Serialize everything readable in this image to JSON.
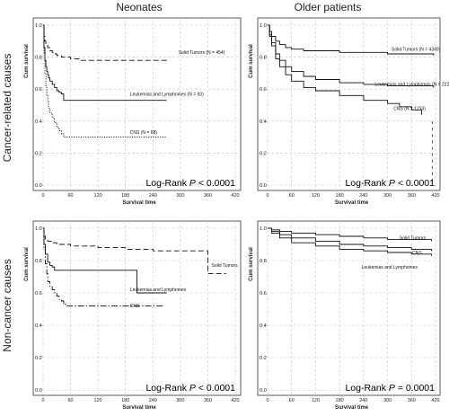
{
  "column_titles": [
    "Neonates",
    "Older patients"
  ],
  "row_titles": [
    "Cancer-related causes",
    "Non-cancer causes"
  ],
  "chart_data": [
    {
      "type": "line",
      "panel": "neonates-cancer",
      "xlabel": "Survival time",
      "ylabel": "Cum survival",
      "xlim": [
        0,
        420
      ],
      "ylim": [
        0,
        1.0
      ],
      "xticks": [
        0,
        60,
        120,
        180,
        240,
        300,
        360,
        420
      ],
      "yticks": [
        0.0,
        0.2,
        0.4,
        0.6,
        0.8,
        1.0
      ],
      "grid": true,
      "stat": {
        "prefix": "Log-Rank ",
        "p_symbol": "P",
        "suffix": " < 0.0001"
      },
      "series": [
        {
          "name": "Solid Tumors (N = 454)",
          "label": "Solid Tumors (N = 454)",
          "style": "dashed",
          "label_pos": [
            296,
            0.82
          ],
          "x": [
            0,
            2,
            4,
            6,
            10,
            15,
            20,
            25,
            30,
            40,
            60,
            80,
            275
          ],
          "y": [
            1.0,
            0.93,
            0.9,
            0.88,
            0.86,
            0.84,
            0.83,
            0.82,
            0.81,
            0.8,
            0.79,
            0.78,
            0.78
          ]
        },
        {
          "name": "Leukemias and Lymphomes (N = 93)",
          "label": "Leukemias and Lymphomes (N = 93)",
          "style": "solid",
          "label_pos": [
            190,
            0.56
          ],
          "x": [
            0,
            2,
            4,
            6,
            8,
            10,
            12,
            15,
            20,
            25,
            30,
            35,
            40,
            45,
            270
          ],
          "y": [
            1.0,
            0.86,
            0.78,
            0.74,
            0.71,
            0.69,
            0.67,
            0.65,
            0.63,
            0.61,
            0.59,
            0.58,
            0.57,
            0.53,
            0.53
          ]
        },
        {
          "name": "CNS (N = 68)",
          "label": "CNS (N = 68)",
          "style": "dotted",
          "label_pos": [
            190,
            0.32
          ],
          "x": [
            0,
            2,
            4,
            6,
            8,
            10,
            12,
            15,
            20,
            25,
            30,
            35,
            40,
            45,
            270
          ],
          "y": [
            1.0,
            0.82,
            0.7,
            0.62,
            0.56,
            0.52,
            0.48,
            0.45,
            0.42,
            0.39,
            0.36,
            0.34,
            0.32,
            0.3,
            0.3
          ]
        }
      ]
    },
    {
      "type": "line",
      "panel": "older-cancer",
      "xlabel": "Survival time",
      "ylabel": "Cum survival",
      "xlim": [
        0,
        420
      ],
      "ylim": [
        0,
        1.0
      ],
      "xticks": [
        0,
        60,
        120,
        180,
        240,
        300,
        360,
        420
      ],
      "yticks": [
        0.0,
        0.2,
        0.4,
        0.6,
        0.8,
        1.0
      ],
      "grid": true,
      "stat": {
        "prefix": "Log-Rank ",
        "p_symbol": "P",
        "suffix": " < 0.0001"
      },
      "series": [
        {
          "name": "Solid Tumors (N = 4349)",
          "label": "Solid Tumors (N = 4349)",
          "style": "solid",
          "label_pos": [
            310,
            0.84
          ],
          "x": [
            0,
            5,
            10,
            20,
            30,
            45,
            60,
            90,
            120,
            180,
            240,
            300,
            360,
            415
          ],
          "y": [
            1.0,
            0.96,
            0.93,
            0.9,
            0.88,
            0.86,
            0.85,
            0.84,
            0.84,
            0.83,
            0.83,
            0.82,
            0.82,
            0.81
          ]
        },
        {
          "name": "Leukemias and Lymphomas (N = 2222)",
          "label": "Leukemias and Lymphomas (N = 2222)",
          "style": "solid",
          "label_pos": [
            268,
            0.62
          ],
          "x": [
            0,
            5,
            10,
            20,
            30,
            45,
            60,
            90,
            120,
            180,
            240,
            300,
            360,
            415
          ],
          "y": [
            1.0,
            0.94,
            0.89,
            0.82,
            0.78,
            0.74,
            0.71,
            0.68,
            0.66,
            0.64,
            0.63,
            0.62,
            0.62,
            0.61
          ]
        },
        {
          "name": "CNS (N = 1233)",
          "label": "CNS (N = 1233)",
          "style": "solid",
          "label_pos": [
            315,
            0.47
          ],
          "x": [
            0,
            5,
            10,
            20,
            30,
            45,
            60,
            90,
            120,
            180,
            240,
            300,
            330,
            360,
            385
          ],
          "y": [
            1.0,
            0.93,
            0.87,
            0.79,
            0.74,
            0.69,
            0.65,
            0.61,
            0.59,
            0.56,
            0.53,
            0.51,
            0.49,
            0.47,
            0.44
          ]
        }
      ],
      "extra_marks": {
        "x": 412,
        "y": [
          0.03,
          0.07,
          0.11,
          0.15,
          0.19,
          0.23,
          0.27,
          0.31,
          0.35,
          0.39
        ]
      }
    },
    {
      "type": "line",
      "panel": "neonates-noncancer",
      "xlabel": "Survival time",
      "ylabel": "Cum survival",
      "xlim": [
        0,
        420
      ],
      "ylim": [
        0,
        1.0
      ],
      "xticks": [
        0,
        60,
        120,
        180,
        240,
        300,
        360,
        420
      ],
      "yticks": [
        0.0,
        0.2,
        0.4,
        0.6,
        0.8,
        1.0
      ],
      "grid": true,
      "stat": {
        "prefix": "Log-Rank ",
        "p_symbol": "P",
        "suffix": " < 0.0001"
      },
      "series": [
        {
          "name": "Solid Tumors",
          "label": "Solid Tumors",
          "style": "dashed",
          "label_pos": [
            368,
            0.76
          ],
          "x": [
            0,
            2,
            5,
            10,
            20,
            30,
            60,
            120,
            180,
            240,
            300,
            355,
            360,
            400
          ],
          "y": [
            1.0,
            0.95,
            0.93,
            0.92,
            0.91,
            0.9,
            0.89,
            0.88,
            0.87,
            0.86,
            0.86,
            0.86,
            0.72,
            0.72
          ]
        },
        {
          "name": "Leukemias and Lymphomes",
          "label": "Leukemias and Lymphomes",
          "style": "solid",
          "label_pos": [
            190,
            0.61
          ],
          "x": [
            0,
            2,
            5,
            10,
            15,
            20,
            25,
            200,
            205,
            270
          ],
          "y": [
            1.0,
            0.9,
            0.84,
            0.79,
            0.77,
            0.76,
            0.74,
            0.74,
            0.6,
            0.6
          ]
        },
        {
          "name": "CNS",
          "label": "CNS",
          "style": "dashdot",
          "label_pos": [
            190,
            0.51
          ],
          "x": [
            0,
            2,
            5,
            8,
            10,
            15,
            20,
            25,
            30,
            35,
            40,
            45,
            50,
            265
          ],
          "y": [
            1.0,
            0.87,
            0.78,
            0.72,
            0.67,
            0.64,
            0.62,
            0.6,
            0.58,
            0.56,
            0.55,
            0.53,
            0.52,
            0.52
          ]
        }
      ]
    },
    {
      "type": "line",
      "panel": "older-noncancer",
      "xlabel": "Survival time",
      "ylabel": "Cum survival",
      "xlim": [
        0,
        420
      ],
      "ylim": [
        0,
        1.0
      ],
      "xticks": [
        0,
        60,
        120,
        180,
        240,
        300,
        360,
        420
      ],
      "yticks": [
        0.0,
        0.2,
        0.4,
        0.6,
        0.8,
        1.0
      ],
      "grid": true,
      "stat": {
        "prefix": "Log-Rank ",
        "p_symbol": "P",
        "suffix": " = 0.0001"
      },
      "series": [
        {
          "name": "Solid Tumors",
          "label": "Solid Tumors",
          "style": "solid",
          "label_pos": [
            330,
            0.93
          ],
          "x": [
            0,
            10,
            30,
            60,
            120,
            180,
            240,
            300,
            360,
            410
          ],
          "y": [
            1.0,
            0.99,
            0.98,
            0.97,
            0.96,
            0.95,
            0.94,
            0.93,
            0.93,
            0.92
          ]
        },
        {
          "name": "CNS",
          "label": "CNS",
          "style": "solid",
          "label_pos": [
            362,
            0.84
          ],
          "x": [
            0,
            10,
            30,
            60,
            120,
            180,
            240,
            300,
            360,
            410
          ],
          "y": [
            1.0,
            0.98,
            0.96,
            0.94,
            0.92,
            0.9,
            0.89,
            0.88,
            0.87,
            0.86
          ]
        },
        {
          "name": "Leukemias and Lymphomes",
          "label": "Leukemias and Lymphomes",
          "style": "solid",
          "label_pos": [
            235,
            0.75
          ],
          "x": [
            0,
            10,
            30,
            60,
            120,
            180,
            240,
            300,
            360,
            410
          ],
          "y": [
            1.0,
            0.97,
            0.94,
            0.91,
            0.89,
            0.87,
            0.86,
            0.85,
            0.84,
            0.83
          ]
        }
      ]
    }
  ]
}
